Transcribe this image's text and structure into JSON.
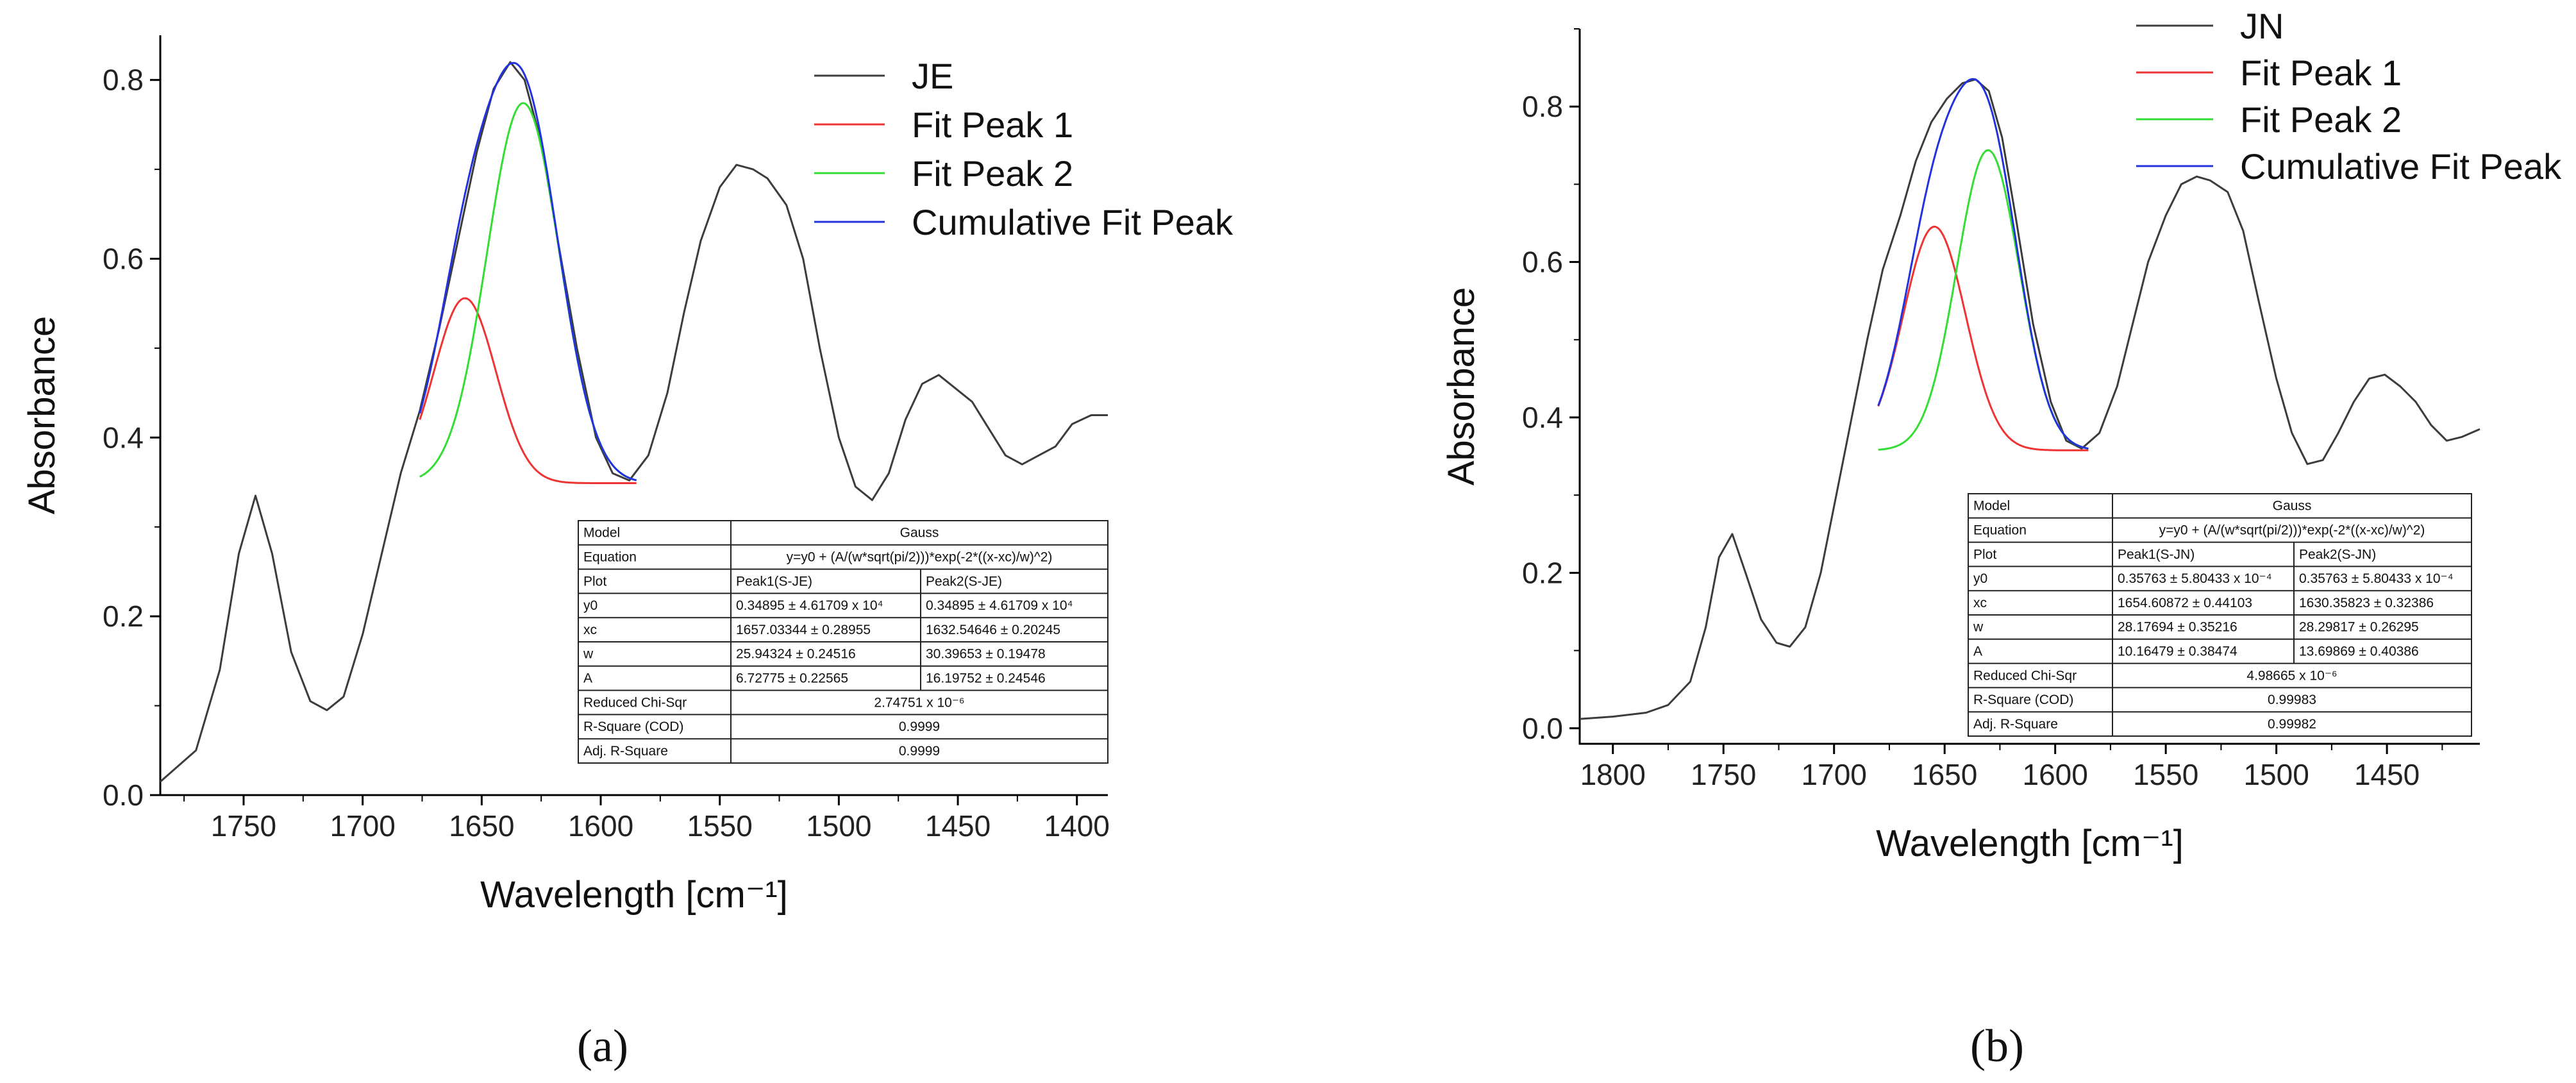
{
  "chart_data": [
    {
      "type": "line",
      "panel_label": "(a)",
      "xlabel": "Wavelength [cm⁻¹]",
      "ylabel": "Absorbance",
      "xlim": [
        1785,
        1387
      ],
      "ylim": [
        0,
        0.85
      ],
      "xticks": [
        1750,
        1700,
        1650,
        1600,
        1550,
        1500,
        1450,
        1400
      ],
      "yticks": [
        0.0,
        0.2,
        0.4,
        0.6,
        0.8
      ],
      "legend_position": "top-right",
      "series": [
        {
          "name": "JE",
          "color": "#3c3c3c",
          "x": [
            1785,
            1770,
            1760,
            1752,
            1745,
            1738,
            1730,
            1722,
            1715,
            1708,
            1700,
            1692,
            1684,
            1676,
            1668,
            1660,
            1652,
            1645,
            1638,
            1632,
            1625,
            1618,
            1610,
            1602,
            1595,
            1588,
            1580,
            1572,
            1565,
            1558,
            1550,
            1543,
            1536,
            1530,
            1522,
            1515,
            1508,
            1500,
            1493,
            1486,
            1479,
            1472,
            1465,
            1458,
            1451,
            1444,
            1437,
            1430,
            1423,
            1416,
            1409,
            1402,
            1394,
            1387
          ],
          "y": [
            0.015,
            0.05,
            0.14,
            0.27,
            0.335,
            0.27,
            0.16,
            0.105,
            0.095,
            0.11,
            0.18,
            0.27,
            0.36,
            0.43,
            0.52,
            0.62,
            0.72,
            0.79,
            0.82,
            0.8,
            0.73,
            0.62,
            0.5,
            0.4,
            0.36,
            0.352,
            0.38,
            0.45,
            0.54,
            0.62,
            0.68,
            0.705,
            0.7,
            0.69,
            0.66,
            0.6,
            0.5,
            0.4,
            0.345,
            0.33,
            0.36,
            0.42,
            0.46,
            0.47,
            0.455,
            0.44,
            0.41,
            0.38,
            0.37,
            0.38,
            0.39,
            0.415,
            0.425,
            0.425
          ]
        },
        {
          "name": "Fit Peak 1",
          "color": "#ee3333",
          "y0": 0.34895,
          "xc": 1657.03344,
          "w": 25.94324,
          "A": 6.72775,
          "x_from": 1676,
          "x_to": 1585
        },
        {
          "name": "Fit Peak 2",
          "color": "#33dd33",
          "y0": 0.34895,
          "xc": 1632.54646,
          "w": 30.39653,
          "A": 16.19752,
          "x_from": 1676,
          "x_to": 1585
        },
        {
          "name": "Cumulative Fit Peak",
          "color": "#2233dd",
          "x_from": 1676,
          "x_to": 1585
        }
      ],
      "table": {
        "model_label": "Model",
        "model": "Gauss",
        "equation_label": "Equation",
        "equation": "y=y0 + (A/(w*sqrt(pi/2)))*exp(-2*((x-xc)/w)^2)",
        "plot_label": "Plot",
        "peak1": "Peak1(S-JE)",
        "peak2": "Peak2(S-JE)",
        "rows": [
          {
            "label": "y0",
            "peak1": "0.34895 ± 4.61709 x 10⁴",
            "peak2": "0.34895 ± 4.61709 x 10⁴"
          },
          {
            "label": "xc",
            "peak1": "1657.03344 ± 0.28955",
            "peak2": "1632.54646 ± 0.20245"
          },
          {
            "label": "w",
            "peak1": "25.94324 ± 0.24516",
            "peak2": "30.39653 ± 0.19478"
          },
          {
            "label": "A",
            "peak1": "6.72775 ± 0.22565",
            "peak2": "16.19752 ± 0.24546"
          }
        ],
        "stats": [
          {
            "label": "Reduced Chi-Sqr",
            "value": "2.74751 x 10⁻⁶"
          },
          {
            "label": "R-Square (COD)",
            "value": "0.9999"
          },
          {
            "label": "Adj. R-Square",
            "value": "0.9999"
          }
        ]
      }
    },
    {
      "type": "line",
      "panel_label": "(b)",
      "xlabel": "Wavelength [cm⁻¹]",
      "ylabel": "Absorbance",
      "xlim": [
        1815,
        1408
      ],
      "ylim": [
        -0.02,
        0.9
      ],
      "xticks": [
        1800,
        1750,
        1700,
        1650,
        1600,
        1550,
        1500,
        1450
      ],
      "yticks": [
        0.0,
        0.2,
        0.4,
        0.6,
        0.8
      ],
      "legend_position": "top-right",
      "series": [
        {
          "name": "JN",
          "color": "#3c3c3c",
          "x": [
            1815,
            1800,
            1785,
            1775,
            1765,
            1758,
            1752,
            1746,
            1740,
            1733,
            1726,
            1720,
            1713,
            1706,
            1699,
            1692,
            1685,
            1678,
            1670,
            1663,
            1656,
            1649,
            1642,
            1636,
            1630,
            1624,
            1618,
            1610,
            1602,
            1595,
            1588,
            1580,
            1572,
            1565,
            1558,
            1550,
            1543,
            1536,
            1530,
            1522,
            1515,
            1508,
            1500,
            1493,
            1486,
            1479,
            1472,
            1465,
            1458,
            1451,
            1444,
            1437,
            1430,
            1423,
            1416,
            1408
          ],
          "y": [
            0.012,
            0.015,
            0.02,
            0.03,
            0.06,
            0.13,
            0.22,
            0.25,
            0.2,
            0.14,
            0.11,
            0.105,
            0.13,
            0.2,
            0.3,
            0.4,
            0.5,
            0.59,
            0.66,
            0.73,
            0.78,
            0.81,
            0.83,
            0.835,
            0.82,
            0.76,
            0.66,
            0.52,
            0.42,
            0.37,
            0.36,
            0.38,
            0.44,
            0.52,
            0.6,
            0.66,
            0.7,
            0.71,
            0.705,
            0.69,
            0.64,
            0.55,
            0.45,
            0.38,
            0.34,
            0.345,
            0.38,
            0.42,
            0.45,
            0.455,
            0.44,
            0.42,
            0.39,
            0.37,
            0.375,
            0.385
          ]
        },
        {
          "name": "Fit Peak 1",
          "color": "#ee3333",
          "y0": 0.35763,
          "xc": 1654.60872,
          "w": 28.17694,
          "A": 10.16479,
          "x_from": 1680,
          "x_to": 1585
        },
        {
          "name": "Fit Peak 2",
          "color": "#33dd33",
          "y0": 0.35763,
          "xc": 1630.35823,
          "w": 28.29817,
          "A": 13.69869,
          "x_from": 1680,
          "x_to": 1585
        },
        {
          "name": "Cumulative Fit Peak",
          "color": "#2233dd",
          "x_from": 1680,
          "x_to": 1585
        }
      ],
      "table": {
        "model_label": "Model",
        "model": "Gauss",
        "equation_label": "Equation",
        "equation": "y=y0 + (A/(w*sqrt(pi/2)))*exp(-2*((x-xc)/w)^2)",
        "plot_label": "Plot",
        "peak1": "Peak1(S-JN)",
        "peak2": "Peak2(S-JN)",
        "rows": [
          {
            "label": "y0",
            "peak1": "0.35763 ± 5.80433 x 10⁻⁴",
            "peak2": "0.35763 ± 5.80433 x 10⁻⁴"
          },
          {
            "label": "xc",
            "peak1": "1654.60872 ± 0.44103",
            "peak2": "1630.35823 ± 0.32386"
          },
          {
            "label": "w",
            "peak1": "28.17694 ± 0.35216",
            "peak2": "28.29817 ± 0.26295"
          },
          {
            "label": "A",
            "peak1": "10.16479 ± 0.38474",
            "peak2": "13.69869 ± 0.40386"
          }
        ],
        "stats": [
          {
            "label": "Reduced Chi-Sqr",
            "value": "4.98665 x 10⁻⁶"
          },
          {
            "label": "R-Square (COD)",
            "value": "0.99983"
          },
          {
            "label": "Adj. R-Square",
            "value": "0.99982"
          }
        ]
      }
    }
  ]
}
